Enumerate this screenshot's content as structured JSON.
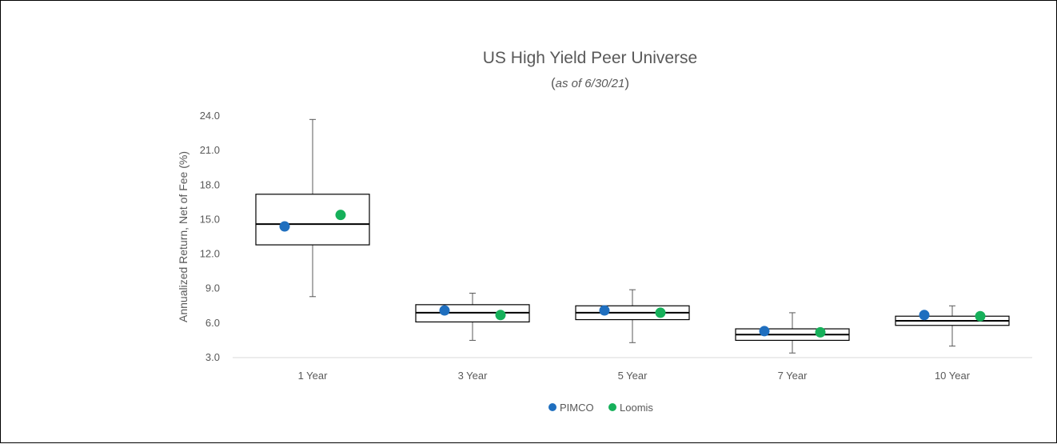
{
  "chart_data": {
    "type": "box",
    "title": "US High Yield Peer Universe",
    "subtitle": {
      "open": "(",
      "text": "as of 6/30/21",
      "close": ")"
    },
    "xlabel": "",
    "ylabel": "Annualized Return, Net of Fee (%)",
    "ylim": [
      3.0,
      24.0
    ],
    "yticks": [
      "3.0",
      "6.0",
      "9.0",
      "12.0",
      "15.0",
      "18.0",
      "21.0",
      "24.0"
    ],
    "grid": false,
    "legend_position": "bottom",
    "categories": [
      "1 Year",
      "3 Year",
      "5 Year",
      "7 Year",
      "10 Year"
    ],
    "boxes": [
      {
        "min": 8.3,
        "q1": 12.8,
        "median": 14.6,
        "q3": 17.2,
        "max": 23.7
      },
      {
        "min": 4.5,
        "q1": 6.1,
        "median": 6.9,
        "q3": 7.6,
        "max": 8.6
      },
      {
        "min": 4.3,
        "q1": 6.3,
        "median": 6.9,
        "q3": 7.5,
        "max": 8.9
      },
      {
        "min": 3.4,
        "q1": 4.5,
        "median": 5.0,
        "q3": 5.5,
        "max": 6.9
      },
      {
        "min": 4.0,
        "q1": 5.8,
        "median": 6.2,
        "q3": 6.6,
        "max": 7.5
      }
    ],
    "series": [
      {
        "name": "PIMCO",
        "color": "#1f6fbf",
        "values": [
          14.4,
          7.1,
          7.1,
          5.3,
          6.7
        ]
      },
      {
        "name": "Loomis",
        "color": "#16b05a",
        "values": [
          15.4,
          6.7,
          6.9,
          5.2,
          6.6
        ]
      }
    ],
    "colors": {
      "box_stroke": "#000000",
      "whisker": "#595959",
      "axis": "#d9d9d9",
      "text": "#595959"
    }
  }
}
